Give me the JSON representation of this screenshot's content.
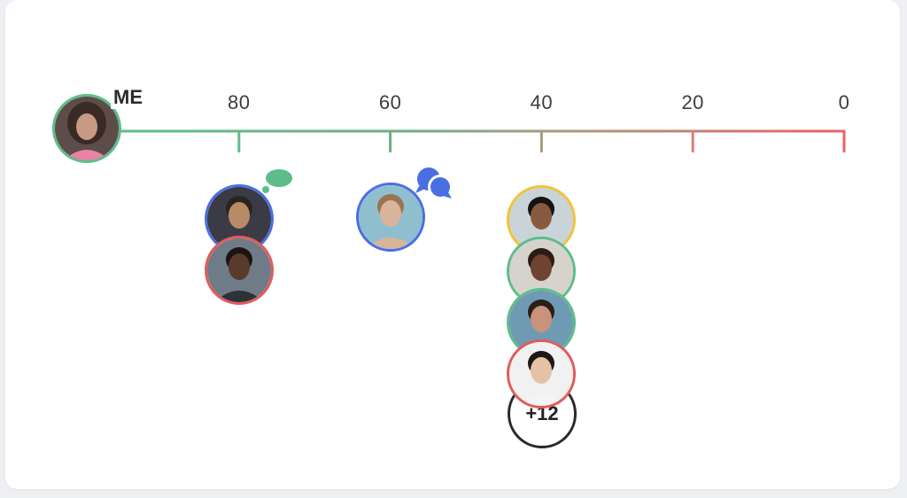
{
  "me": {
    "label": "ME",
    "ring_color": "#5dbd8a"
  },
  "scale": {
    "ticks": [
      {
        "value": 80,
        "label": "80",
        "color": "#5dbd8a"
      },
      {
        "value": 60,
        "label": "60",
        "color": "#6fae7e"
      },
      {
        "value": 40,
        "label": "40",
        "color": "#a99a7f"
      },
      {
        "value": 20,
        "label": "20",
        "color": "#dd7b72"
      },
      {
        "value": 0,
        "label": "0",
        "color": "#e86466"
      }
    ],
    "gradient_start": "#5dbd8a",
    "gradient_end": "#e86466"
  },
  "people": [
    {
      "id": "p1",
      "value": 80,
      "ring_color": "#4a6fe3",
      "skin": "#b98a6a",
      "hair": "#2c2320",
      "bg": "#3b3b45",
      "shirt": "#1e1e24",
      "indicator": "thought-bubble-green"
    },
    {
      "id": "p2",
      "value": 80,
      "ring_color": "#e25b5b",
      "skin": "#5a3a2a",
      "hair": "#1b1412",
      "bg": "#6f7b86",
      "shirt": "#2d3138"
    },
    {
      "id": "p3",
      "value": 60,
      "ring_color": "#4a6fe3",
      "skin": "#d8b49a",
      "hair": "#9a7450",
      "bg": "#8fbfcf",
      "shirt": "#d8b49a",
      "indicator": "chat-bubbles-blue"
    },
    {
      "id": "p4",
      "value": 40,
      "ring_color": "#f0c437",
      "skin": "#8a5a40",
      "hair": "#151313",
      "bg": "#c9d4d8",
      "shirt": "#1c1c1c"
    },
    {
      "id": "p5",
      "value": 40,
      "ring_color": "#5dbd8a",
      "skin": "#6e4430",
      "hair": "#2b1c15",
      "bg": "#d6d3cd",
      "shirt": "#2f2f2f"
    },
    {
      "id": "p6",
      "value": 40,
      "ring_color": "#5dbd8a",
      "skin": "#c9927a",
      "hair": "#2a1e19",
      "bg": "#6f9ab4",
      "shirt": "#5a6a78"
    },
    {
      "id": "p7",
      "value": 40,
      "ring_color": "#e25b5b",
      "skin": "#e6c2a4",
      "hair": "#1d1715",
      "bg": "#f1f1f1",
      "shirt": "#f4f4f4"
    }
  ],
  "overflow": {
    "label": "+12"
  }
}
